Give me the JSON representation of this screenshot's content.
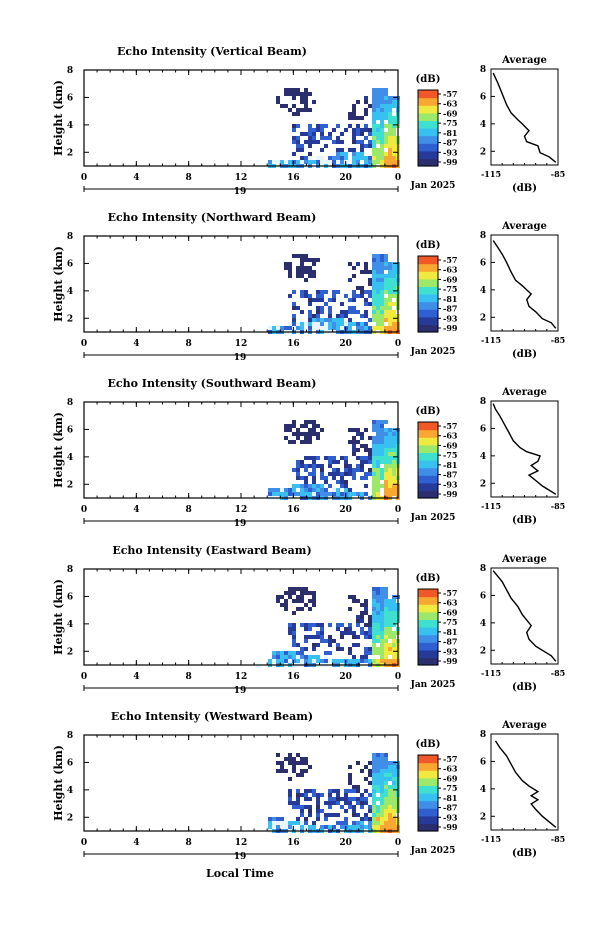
{
  "chart_data": {
    "type": "heatmap",
    "xlabel": "Local Time",
    "xticks": [
      "0",
      "4",
      "8",
      "12",
      "16",
      "20",
      "0"
    ],
    "date_labels": {
      "day": "19",
      "month_year": "Jan 2025"
    },
    "ylabel": "Height (km)",
    "yticks": [
      "2",
      "4",
      "6",
      "8"
    ],
    "colorbar": {
      "unit_label": "(dB)",
      "ticks": [
        "-57",
        "-63",
        "-69",
        "-75",
        "-81",
        "-87",
        "-93",
        "-99"
      ],
      "range": [
        -99,
        -57
      ],
      "colors": [
        "#2b2f6e",
        "#263a9a",
        "#2f5fd0",
        "#3f8ee8",
        "#38c0f0",
        "#3fe0d0",
        "#9be86a",
        "#f0ea40",
        "#f8a830",
        "#f05828"
      ]
    },
    "profile": {
      "title": "Average",
      "xlabel": "(dB)",
      "xticks": [
        "-115",
        "-85"
      ],
      "xlim": [
        -115,
        -85
      ],
      "ylim": [
        1,
        8
      ],
      "yticks": [
        "2",
        "4",
        "6",
        "8"
      ]
    },
    "panels": [
      {
        "title": "Echo Intensity (Vertical Beam)",
        "profile": [
          [
            -86,
            1.2
          ],
          [
            -89,
            1.6
          ],
          [
            -93,
            1.9
          ],
          [
            -94,
            2.4
          ],
          [
            -99,
            2.7
          ],
          [
            -100,
            3.1
          ],
          [
            -98,
            3.5
          ],
          [
            -101,
            4.0
          ],
          [
            -103,
            4.3
          ],
          [
            -106,
            4.8
          ],
          [
            -108,
            5.4
          ],
          [
            -110,
            6.2
          ],
          [
            -112,
            7.0
          ],
          [
            -114,
            7.7
          ]
        ]
      },
      {
        "title": "Echo Intensity (Northward Beam)",
        "profile": [
          [
            -86,
            1.2
          ],
          [
            -88,
            1.6
          ],
          [
            -92,
            1.9
          ],
          [
            -95,
            2.4
          ],
          [
            -98,
            2.8
          ],
          [
            -99,
            3.3
          ],
          [
            -97,
            3.7
          ],
          [
            -99,
            4.0
          ],
          [
            -101,
            4.3
          ],
          [
            -104,
            4.7
          ],
          [
            -106,
            5.3
          ],
          [
            -108,
            6.0
          ],
          [
            -110,
            6.6
          ],
          [
            -112,
            7.1
          ],
          [
            -114,
            7.6
          ]
        ]
      },
      {
        "title": "Echo Intensity (Southward Beam)",
        "profile": [
          [
            -86,
            1.2
          ],
          [
            -89,
            1.5
          ],
          [
            -92,
            1.8
          ],
          [
            -95,
            2.2
          ],
          [
            -98,
            2.6
          ],
          [
            -94,
            2.9
          ],
          [
            -97,
            3.3
          ],
          [
            -94,
            3.6
          ],
          [
            -93,
            4.0
          ],
          [
            -99,
            4.3
          ],
          [
            -102,
            4.6
          ],
          [
            -105,
            5.1
          ],
          [
            -107,
            5.7
          ],
          [
            -109,
            6.3
          ],
          [
            -111,
            6.9
          ],
          [
            -113,
            7.4
          ],
          [
            -114,
            7.8
          ]
        ]
      },
      {
        "title": "Echo Intensity (Eastward Beam)",
        "profile": [
          [
            -86,
            1.2
          ],
          [
            -88,
            1.6
          ],
          [
            -91,
            1.9
          ],
          [
            -95,
            2.3
          ],
          [
            -98,
            2.8
          ],
          [
            -99,
            3.3
          ],
          [
            -97,
            3.8
          ],
          [
            -99,
            4.2
          ],
          [
            -101,
            4.6
          ],
          [
            -103,
            5.2
          ],
          [
            -106,
            5.8
          ],
          [
            -108,
            6.4
          ],
          [
            -110,
            7.0
          ],
          [
            -112,
            7.4
          ],
          [
            -114,
            7.8
          ]
        ]
      },
      {
        "title": "Echo Intensity (Westward Beam)",
        "profile": [
          [
            -86,
            1.2
          ],
          [
            -89,
            1.6
          ],
          [
            -92,
            2.0
          ],
          [
            -95,
            2.5
          ],
          [
            -97,
            2.9
          ],
          [
            -94,
            3.2
          ],
          [
            -97,
            3.5
          ],
          [
            -94,
            3.8
          ],
          [
            -98,
            4.2
          ],
          [
            -101,
            4.6
          ],
          [
            -104,
            5.2
          ],
          [
            -106,
            5.8
          ],
          [
            -108,
            6.4
          ],
          [
            -111,
            7.0
          ],
          [
            -113,
            7.5
          ]
        ]
      }
    ]
  }
}
